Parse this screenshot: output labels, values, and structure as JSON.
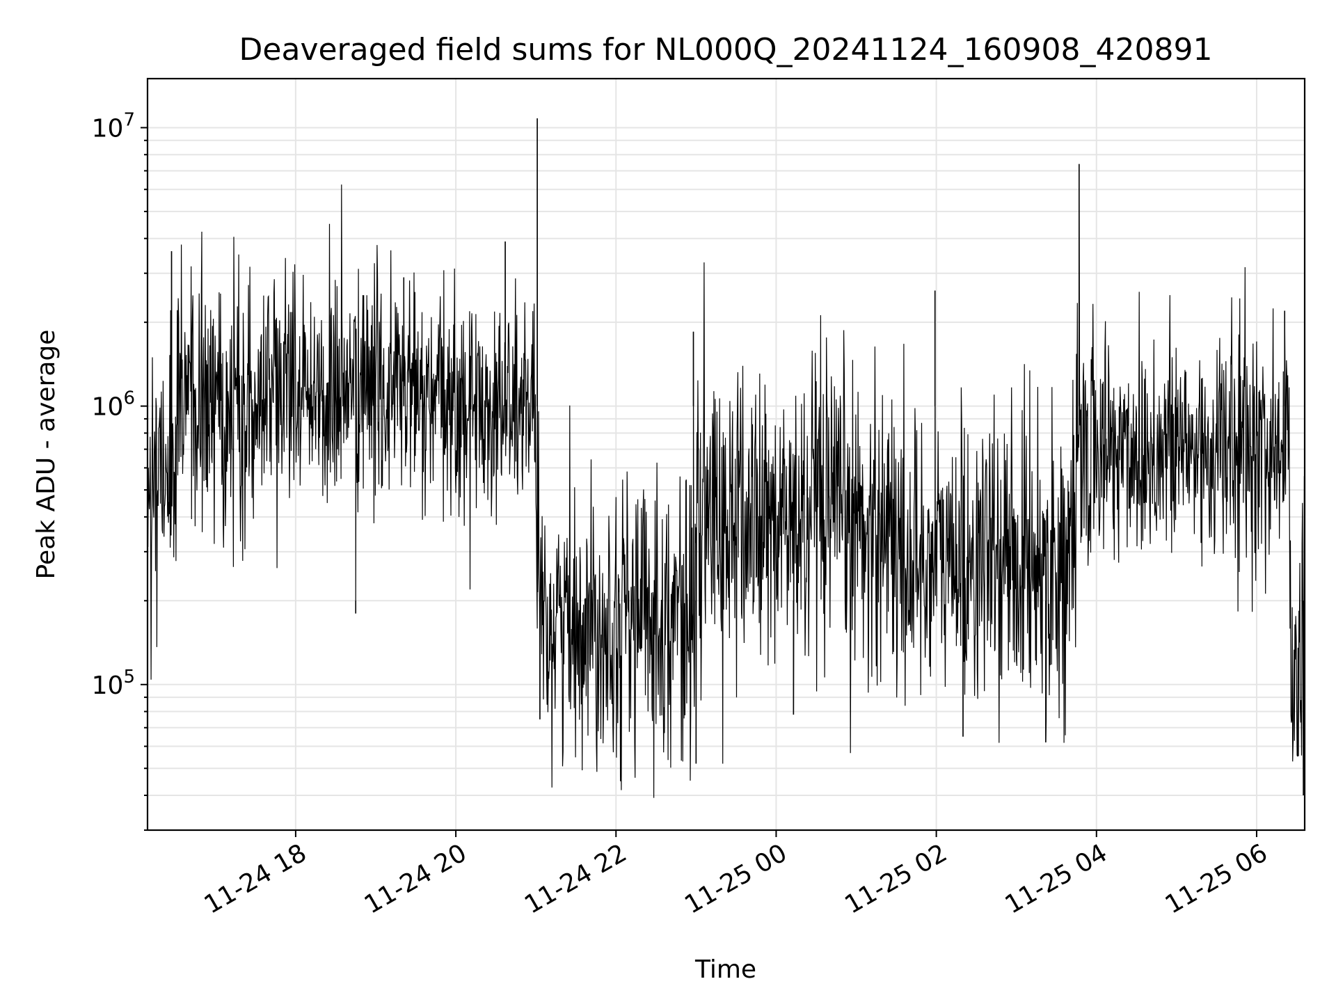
{
  "chart_data": {
    "type": "line",
    "title": "Deaveraged field sums for NL000Q_20241124_160908_420891",
    "xlabel": "Time",
    "ylabel": "Peak ADU - average",
    "x_ticks": [
      "11-24 18",
      "11-24 20",
      "11-24 22",
      "11-25 00",
      "11-25 02",
      "11-25 04",
      "11-25 06"
    ],
    "y_ticks": [
      {
        "base": "10",
        "exp": "5",
        "value": 100000
      },
      {
        "base": "10",
        "exp": "6",
        "value": 1000000
      },
      {
        "base": "10",
        "exp": "7",
        "value": 10000000
      }
    ],
    "xlim": [
      "2024-11-24 16:09",
      "2024-11-25 06:36"
    ],
    "ylim": [
      30000,
      15000000
    ],
    "y_scale": "log",
    "grid": true,
    "line_color": "#000000",
    "segments": [
      {
        "start": "2024-11-24 16:09",
        "end": "2024-11-24 16:30",
        "median": 600000,
        "spread": 0.45
      },
      {
        "start": "2024-11-24 16:30",
        "end": "2024-11-24 17:30",
        "median": 1000000,
        "spread": 0.4
      },
      {
        "start": "2024-11-24 17:30",
        "end": "2024-11-24 19:30",
        "median": 1150000,
        "spread": 0.38
      },
      {
        "start": "2024-11-24 19:30",
        "end": "2024-11-24 21:00",
        "median": 1000000,
        "spread": 0.36
      },
      {
        "start": "2024-11-24 21:00",
        "end": "2024-11-24 22:00",
        "median": 170000,
        "spread": 0.42
      },
      {
        "start": "2024-11-24 22:00",
        "end": "2024-11-24 23:00",
        "median": 180000,
        "spread": 0.45
      },
      {
        "start": "2024-11-24 23:00",
        "end": "2024-11-25 01:30",
        "median": 380000,
        "spread": 0.5
      },
      {
        "start": "2024-11-25 01:30",
        "end": "2024-11-25 03:45",
        "median": 280000,
        "spread": 0.45
      },
      {
        "start": "2024-11-25 03:45",
        "end": "2024-11-25 06:25",
        "median": 700000,
        "spread": 0.4
      },
      {
        "start": "2024-11-25 06:25",
        "end": "2024-11-25 06:36",
        "median": 150000,
        "spread": 0.6
      }
    ],
    "spikes": [
      {
        "time": "2024-11-24 16:27",
        "value": 3600000
      },
      {
        "time": "2024-11-24 18:45",
        "value": 180000
      },
      {
        "time": "2024-11-24 19:21",
        "value": 2900000
      },
      {
        "time": "2024-11-24 20:37",
        "value": 3900000
      },
      {
        "time": "2024-11-24 21:01",
        "value": 10800000
      },
      {
        "time": "2024-11-24 21:03",
        "value": 75000
      },
      {
        "time": "2024-11-24 22:58",
        "value": 1850000
      },
      {
        "time": "2024-11-24 23:00",
        "value": 52000
      },
      {
        "time": "2024-11-25 00:13",
        "value": 78000
      },
      {
        "time": "2024-11-25 01:59",
        "value": 2600000
      },
      {
        "time": "2024-11-25 02:20",
        "value": 65000
      },
      {
        "time": "2024-11-25 03:22",
        "value": 62000
      },
      {
        "time": "2024-11-25 03:47",
        "value": 7400000
      },
      {
        "time": "2024-11-25 06:21",
        "value": 2200000
      },
      {
        "time": "2024-11-25 06:35",
        "value": 40000
      }
    ]
  }
}
